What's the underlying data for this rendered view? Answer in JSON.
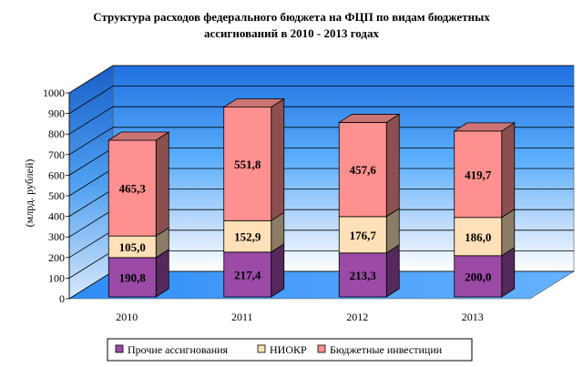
{
  "chart_data": {
    "type": "bar",
    "stacked": true,
    "three_d": true,
    "title_line1": "Структура расходов федерального бюджета на ФЦП по видам бюджетных",
    "title_line2": "ассигнований в 2010 - 2013 годах",
    "ylabel": "(млрд. рублей)",
    "ylim": [
      0,
      1000
    ],
    "yticks": [
      "0",
      "100",
      "200",
      "300",
      "400",
      "500",
      "600",
      "700",
      "800",
      "900",
      "1000"
    ],
    "categories": [
      "2010",
      "2011",
      "2012",
      "2013"
    ],
    "series": [
      {
        "name": "Прочие ассигнования",
        "values": [
          190.8,
          217.4,
          213.3,
          200.0
        ],
        "labels": [
          "190,8",
          "217,4",
          "213,3",
          "200,0"
        ],
        "color": "#9b4aa6"
      },
      {
        "name": "НИОКР",
        "values": [
          105.0,
          152.9,
          176.7,
          186.0
        ],
        "labels": [
          "105,0",
          "152,9",
          "176,7",
          "186,0"
        ],
        "color": "#ffe0b8"
      },
      {
        "name": "Бюджетные инвестиции",
        "values": [
          465.3,
          551.8,
          457.6,
          419.7
        ],
        "labels": [
          "465,3",
          "551,8",
          "457,6",
          "419,7"
        ],
        "color": "#ff9090"
      }
    ],
    "grid": true,
    "legend_position": "bottom",
    "wall_color": "#3399ff",
    "floor_color": "#3399ff"
  }
}
